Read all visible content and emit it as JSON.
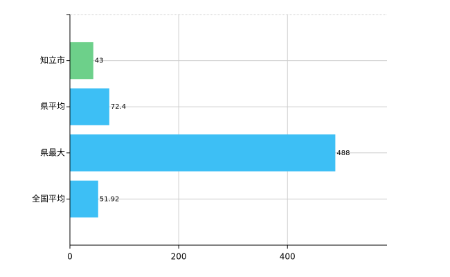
{
  "chart_data": {
    "type": "hbar",
    "categories": [
      "知立市",
      "県平均",
      "県最大",
      "全国平均"
    ],
    "values": [
      43,
      72.4,
      488,
      51.92
    ],
    "colors": [
      "#6dd08a",
      "#3dbff5",
      "#3dbff5",
      "#3dbff5"
    ],
    "xlim": [
      0,
      583
    ],
    "xticks": [
      0,
      200,
      400
    ],
    "grid": true
  }
}
